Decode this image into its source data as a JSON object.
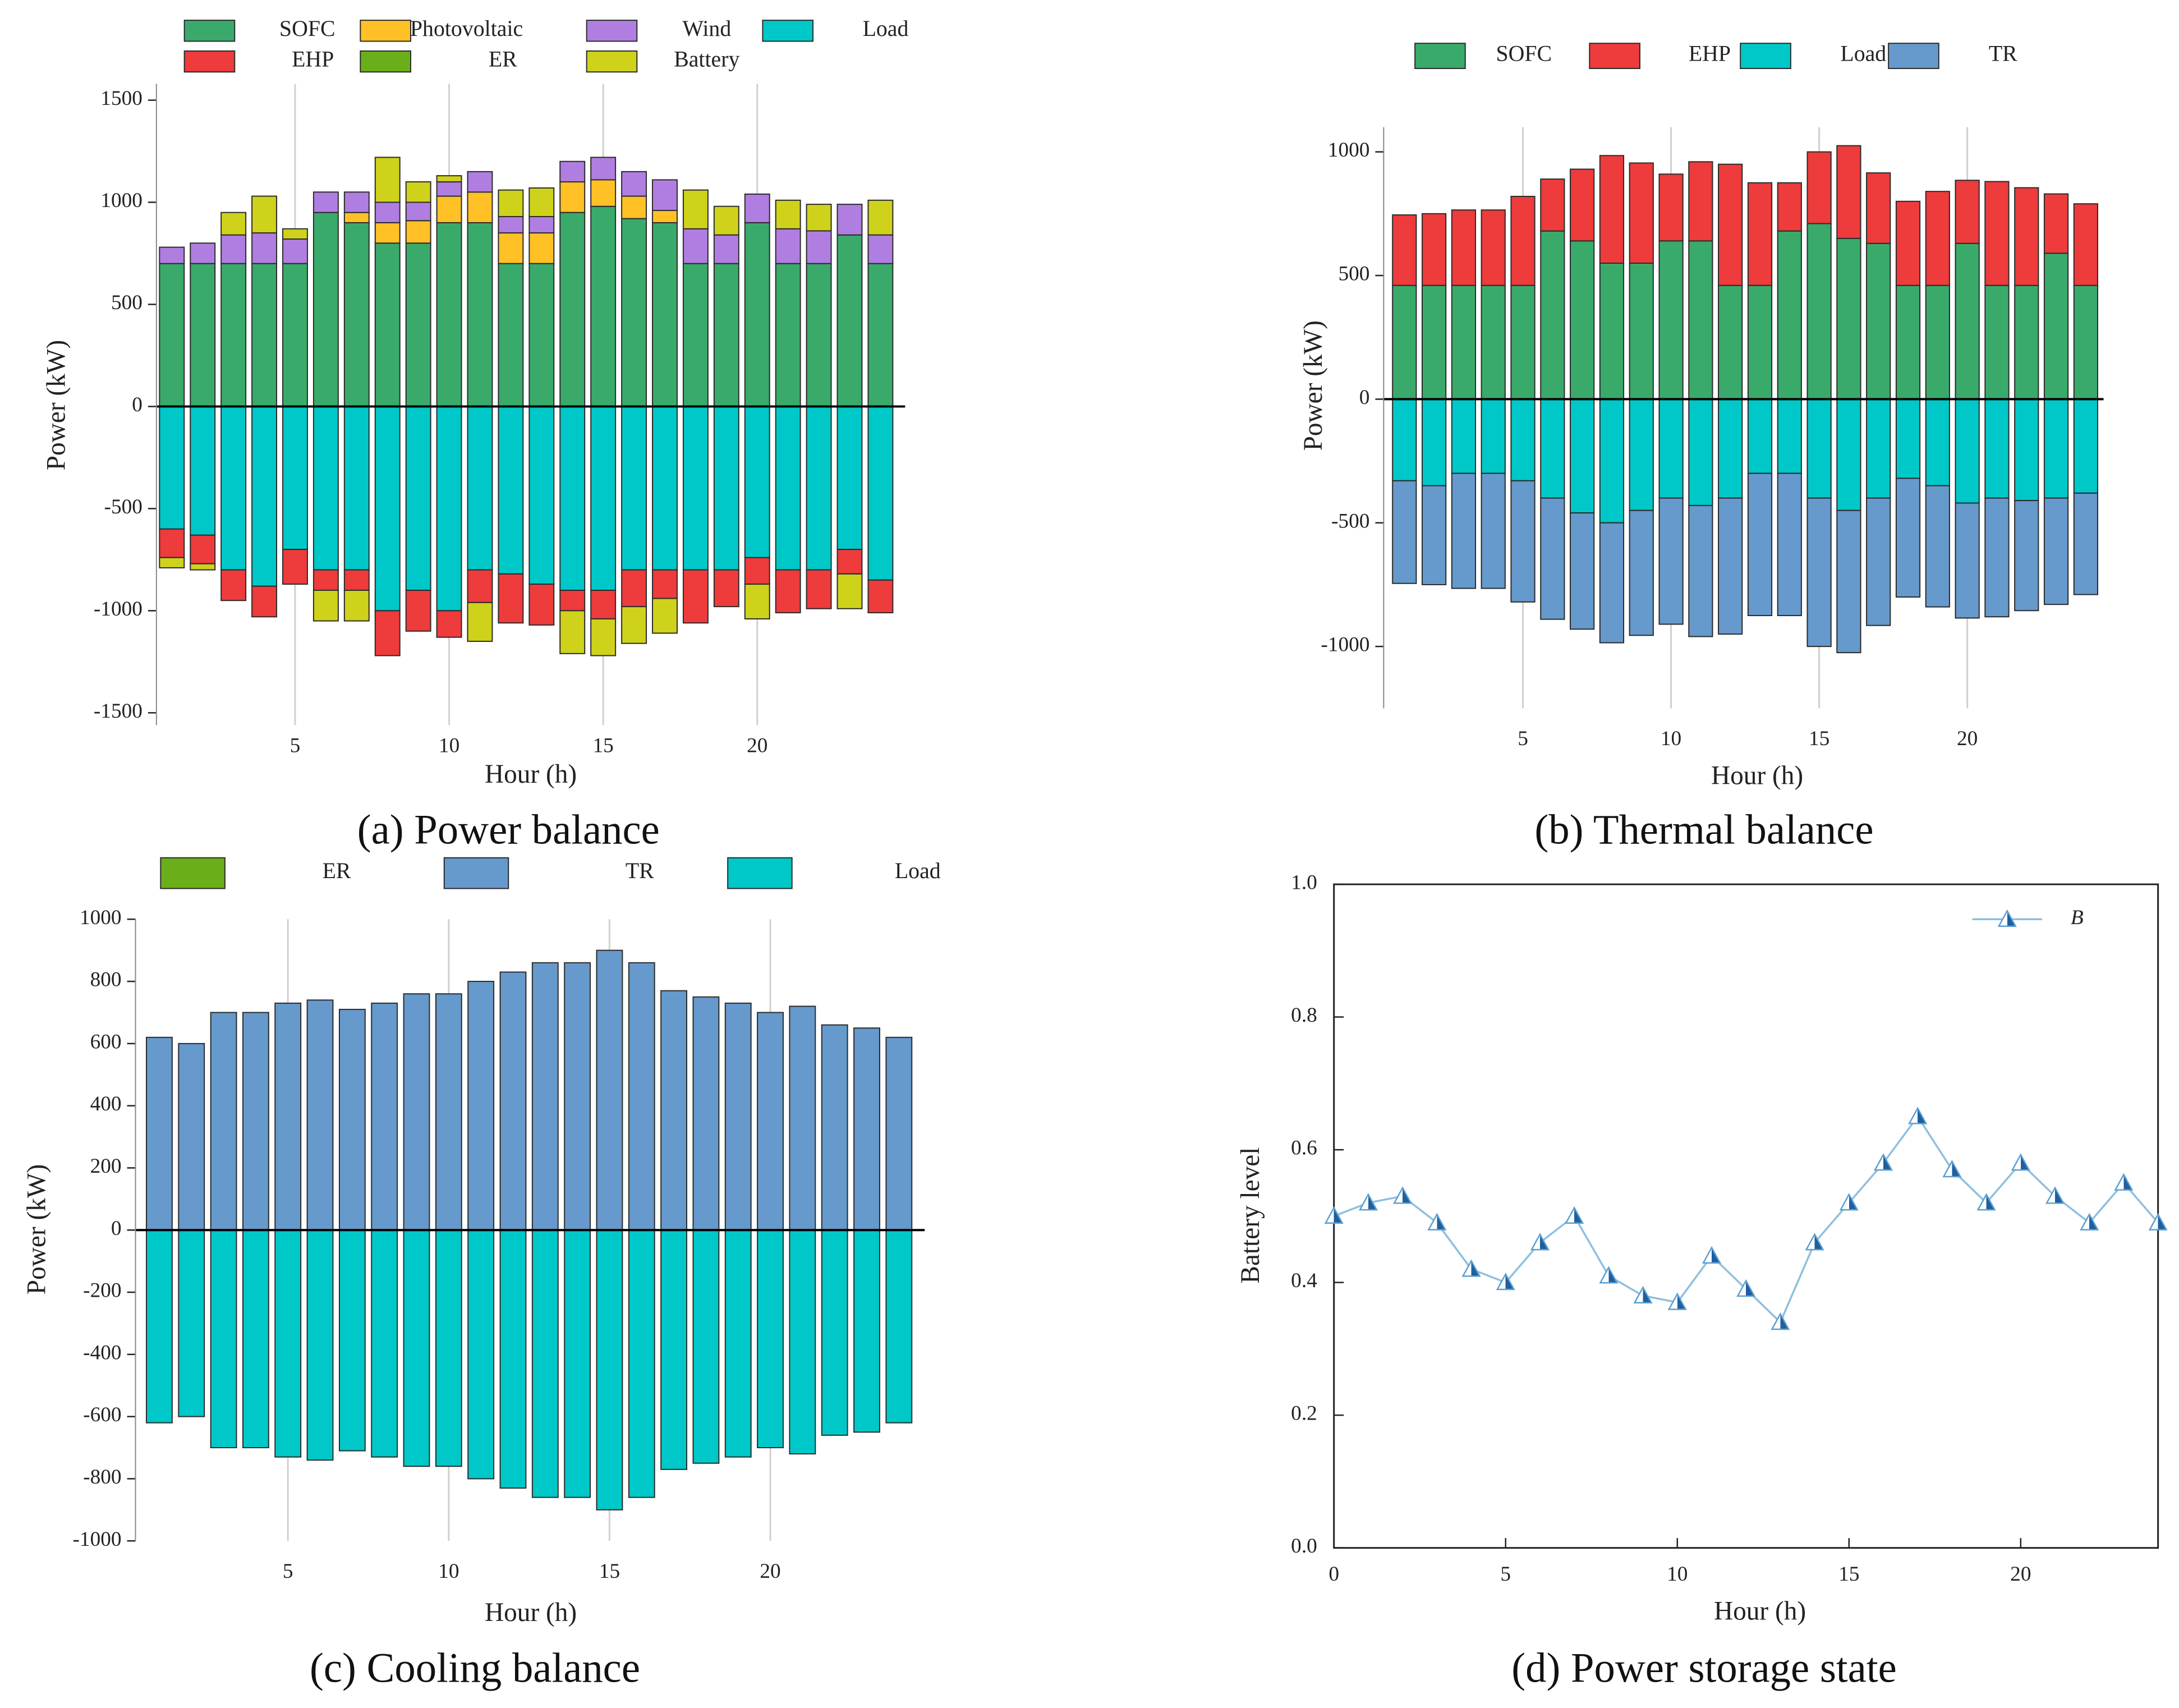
{
  "chart_data": [
    {
      "type": "bar",
      "stacked": true,
      "caption": "(a) Power balance",
      "x_label": "Hour (h)",
      "y_label": "Power (kW)",
      "x": [
        1,
        2,
        3,
        4,
        5,
        6,
        7,
        8,
        9,
        10,
        11,
        12,
        13,
        14,
        15,
        16,
        17,
        18,
        19,
        20,
        21,
        22,
        23,
        24
      ],
      "xlim": [
        0.5,
        24.8
      ],
      "xticks": [
        5,
        10,
        15,
        20
      ],
      "ylim": [
        -1560,
        1580
      ],
      "yticks": [
        -1500,
        -1000,
        -500,
        0,
        500,
        1000,
        1500
      ],
      "grid": "x",
      "series": [
        {
          "name": "SOFC",
          "color": "#3aaa6b",
          "values": [
            700,
            700,
            700,
            700,
            700,
            950,
            900,
            800,
            800,
            900,
            900,
            700,
            700,
            950,
            980,
            920,
            900,
            700,
            700,
            900,
            700,
            700,
            840,
            700
          ]
        },
        {
          "name": "Load",
          "color": "#00c8c8",
          "values": [
            -600,
            -630,
            -800,
            -880,
            -700,
            -800,
            -800,
            -1000,
            -900,
            -1000,
            -800,
            -820,
            -870,
            -900,
            -900,
            -800,
            -800,
            -800,
            -800,
            -740,
            -800,
            -800,
            -700,
            -850
          ]
        },
        {
          "name": "EHP",
          "color": "#ee3b3b",
          "values": [
            -140,
            -140,
            -150,
            -150,
            -170,
            -100,
            -100,
            -220,
            -200,
            -130,
            -160,
            -240,
            -200,
            -100,
            -140,
            -180,
            -140,
            -260,
            -180,
            -130,
            -210,
            -190,
            -120,
            -160
          ]
        },
        {
          "name": "Photovoltaic",
          "color": "#ffc125",
          "values": [
            0,
            0,
            0,
            0,
            0,
            0,
            50,
            100,
            110,
            130,
            150,
            150,
            150,
            150,
            130,
            110,
            60,
            0,
            0,
            0,
            0,
            0,
            0,
            0
          ]
        },
        {
          "name": "ER",
          "color": "#6aaf1a",
          "values": [
            0,
            0,
            0,
            0,
            0,
            0,
            0,
            0,
            0,
            0,
            0,
            0,
            0,
            0,
            0,
            0,
            0,
            0,
            0,
            0,
            0,
            0,
            0,
            0
          ]
        },
        {
          "name": "Wind",
          "color": "#b07ee0",
          "values": [
            80,
            100,
            140,
            150,
            120,
            100,
            100,
            100,
            90,
            70,
            100,
            80,
            80,
            100,
            110,
            120,
            150,
            170,
            140,
            140,
            170,
            160,
            150,
            140
          ]
        },
        {
          "name": "Battery",
          "color": "#cfd21a",
          "values": [
            -50,
            -30,
            110,
            180,
            50,
            -150,
            -150,
            220,
            100,
            30,
            -190,
            130,
            140,
            -210,
            -180,
            -180,
            -170,
            190,
            140,
            -170,
            140,
            130,
            -170,
            170
          ]
        }
      ]
    },
    {
      "type": "bar",
      "stacked": true,
      "caption": "(b) Thermal balance",
      "x_label": "Hour (h)",
      "y_label": "Power (kW)",
      "x": [
        1,
        2,
        3,
        4,
        5,
        6,
        7,
        8,
        9,
        10,
        11,
        12,
        13,
        14,
        15,
        16,
        17,
        18,
        19,
        20,
        21,
        22,
        23,
        24
      ],
      "xlim": [
        0.3,
        24.6
      ],
      "xticks": [
        5,
        10,
        15,
        20
      ],
      "ylim": [
        -1250,
        1100
      ],
      "yticks": [
        -1000,
        -500,
        0,
        500,
        1000
      ],
      "grid": "x",
      "series": [
        {
          "name": "SOFC",
          "color": "#3aaa6b",
          "values": [
            460,
            460,
            460,
            460,
            460,
            680,
            640,
            550,
            550,
            640,
            640,
            460,
            460,
            680,
            710,
            650,
            630,
            460,
            460,
            630,
            460,
            460,
            590,
            460
          ]
        },
        {
          "name": "EHP",
          "color": "#ee3b3b",
          "values": [
            285,
            290,
            305,
            305,
            360,
            210,
            290,
            435,
            405,
            270,
            320,
            490,
            415,
            195,
            290,
            375,
            285,
            340,
            380,
            255,
            420,
            395,
            240,
            330
          ]
        },
        {
          "name": "Load",
          "color": "#00c8c8",
          "values": [
            -330,
            -350,
            -300,
            -300,
            -330,
            -400,
            -460,
            -500,
            -450,
            -400,
            -430,
            -400,
            -300,
            -300,
            -400,
            -450,
            -400,
            -320,
            -350,
            -420,
            -400,
            -410,
            -400,
            -380
          ]
        },
        {
          "name": "TR",
          "color": "#6699cc",
          "values": [
            -415,
            -400,
            -465,
            -465,
            -490,
            -490,
            -470,
            -485,
            -505,
            -510,
            -530,
            -550,
            -575,
            -575,
            -600,
            -575,
            -515,
            -480,
            -490,
            -465,
            -480,
            -445,
            -430,
            -410
          ]
        }
      ]
    },
    {
      "type": "bar",
      "stacked": true,
      "caption": "(c) Cooling balance",
      "x_label": "Hour (h)",
      "y_label": "Power (kW)",
      "x": [
        1,
        2,
        3,
        4,
        5,
        6,
        7,
        8,
        9,
        10,
        11,
        12,
        13,
        14,
        15,
        16,
        17,
        18,
        19,
        20,
        21,
        22,
        23,
        24
      ],
      "xlim": [
        0.26,
        24.8
      ],
      "xticks": [
        5,
        10,
        15,
        20
      ],
      "ylim": [
        -1000,
        1000
      ],
      "yticks": [
        -1000,
        -800,
        -600,
        -400,
        -200,
        0,
        200,
        400,
        600,
        800,
        1000
      ],
      "grid": "x",
      "series": [
        {
          "name": "ER",
          "color": "#6aaf1a",
          "values": [
            0,
            0,
            0,
            0,
            0,
            0,
            0,
            0,
            0,
            0,
            0,
            0,
            0,
            0,
            0,
            0,
            0,
            0,
            0,
            0,
            0,
            0,
            0,
            0
          ]
        },
        {
          "name": "TR",
          "color": "#6699cc",
          "values": [
            620,
            600,
            700,
            700,
            730,
            740,
            710,
            730,
            760,
            760,
            800,
            830,
            860,
            860,
            900,
            860,
            770,
            750,
            730,
            700,
            720,
            660,
            650,
            620
          ]
        },
        {
          "name": "Load",
          "color": "#00c8c8",
          "values": [
            -620,
            -600,
            -700,
            -700,
            -730,
            -740,
            -710,
            -730,
            -760,
            -760,
            -800,
            -830,
            -860,
            -860,
            -900,
            -860,
            -770,
            -750,
            -730,
            -700,
            -720,
            -660,
            -650,
            -620
          ]
        }
      ]
    },
    {
      "type": "line",
      "caption": "(d) Power storage state",
      "x_label": "Hour (h)",
      "y_label": "Battery level",
      "x": [
        0,
        1,
        2,
        3,
        4,
        5,
        6,
        7,
        8,
        9,
        10,
        11,
        12,
        13,
        14,
        15,
        16,
        17,
        18,
        19,
        20,
        21,
        22,
        23,
        24
      ],
      "xlim": [
        0,
        24
      ],
      "xticks": [
        0,
        5,
        10,
        15,
        20
      ],
      "ylim": [
        0,
        1
      ],
      "yticks": [
        {
          "value": 0,
          "label": "0.0"
        },
        0.2,
        0.4,
        0.6,
        0.8,
        {
          "value": 1,
          "label": "1.0"
        }
      ],
      "series": [
        {
          "name": "B",
          "color": "#8fbfe0",
          "values": [
            0.5,
            0.52,
            0.53,
            0.49,
            0.42,
            0.4,
            0.46,
            0.5,
            0.41,
            0.38,
            0.37,
            0.44,
            0.39,
            0.34,
            0.46,
            0.52,
            0.58,
            0.65,
            0.57,
            0.52,
            0.58,
            0.53,
            0.49,
            0.55,
            0.49
          ]
        }
      ]
    }
  ]
}
